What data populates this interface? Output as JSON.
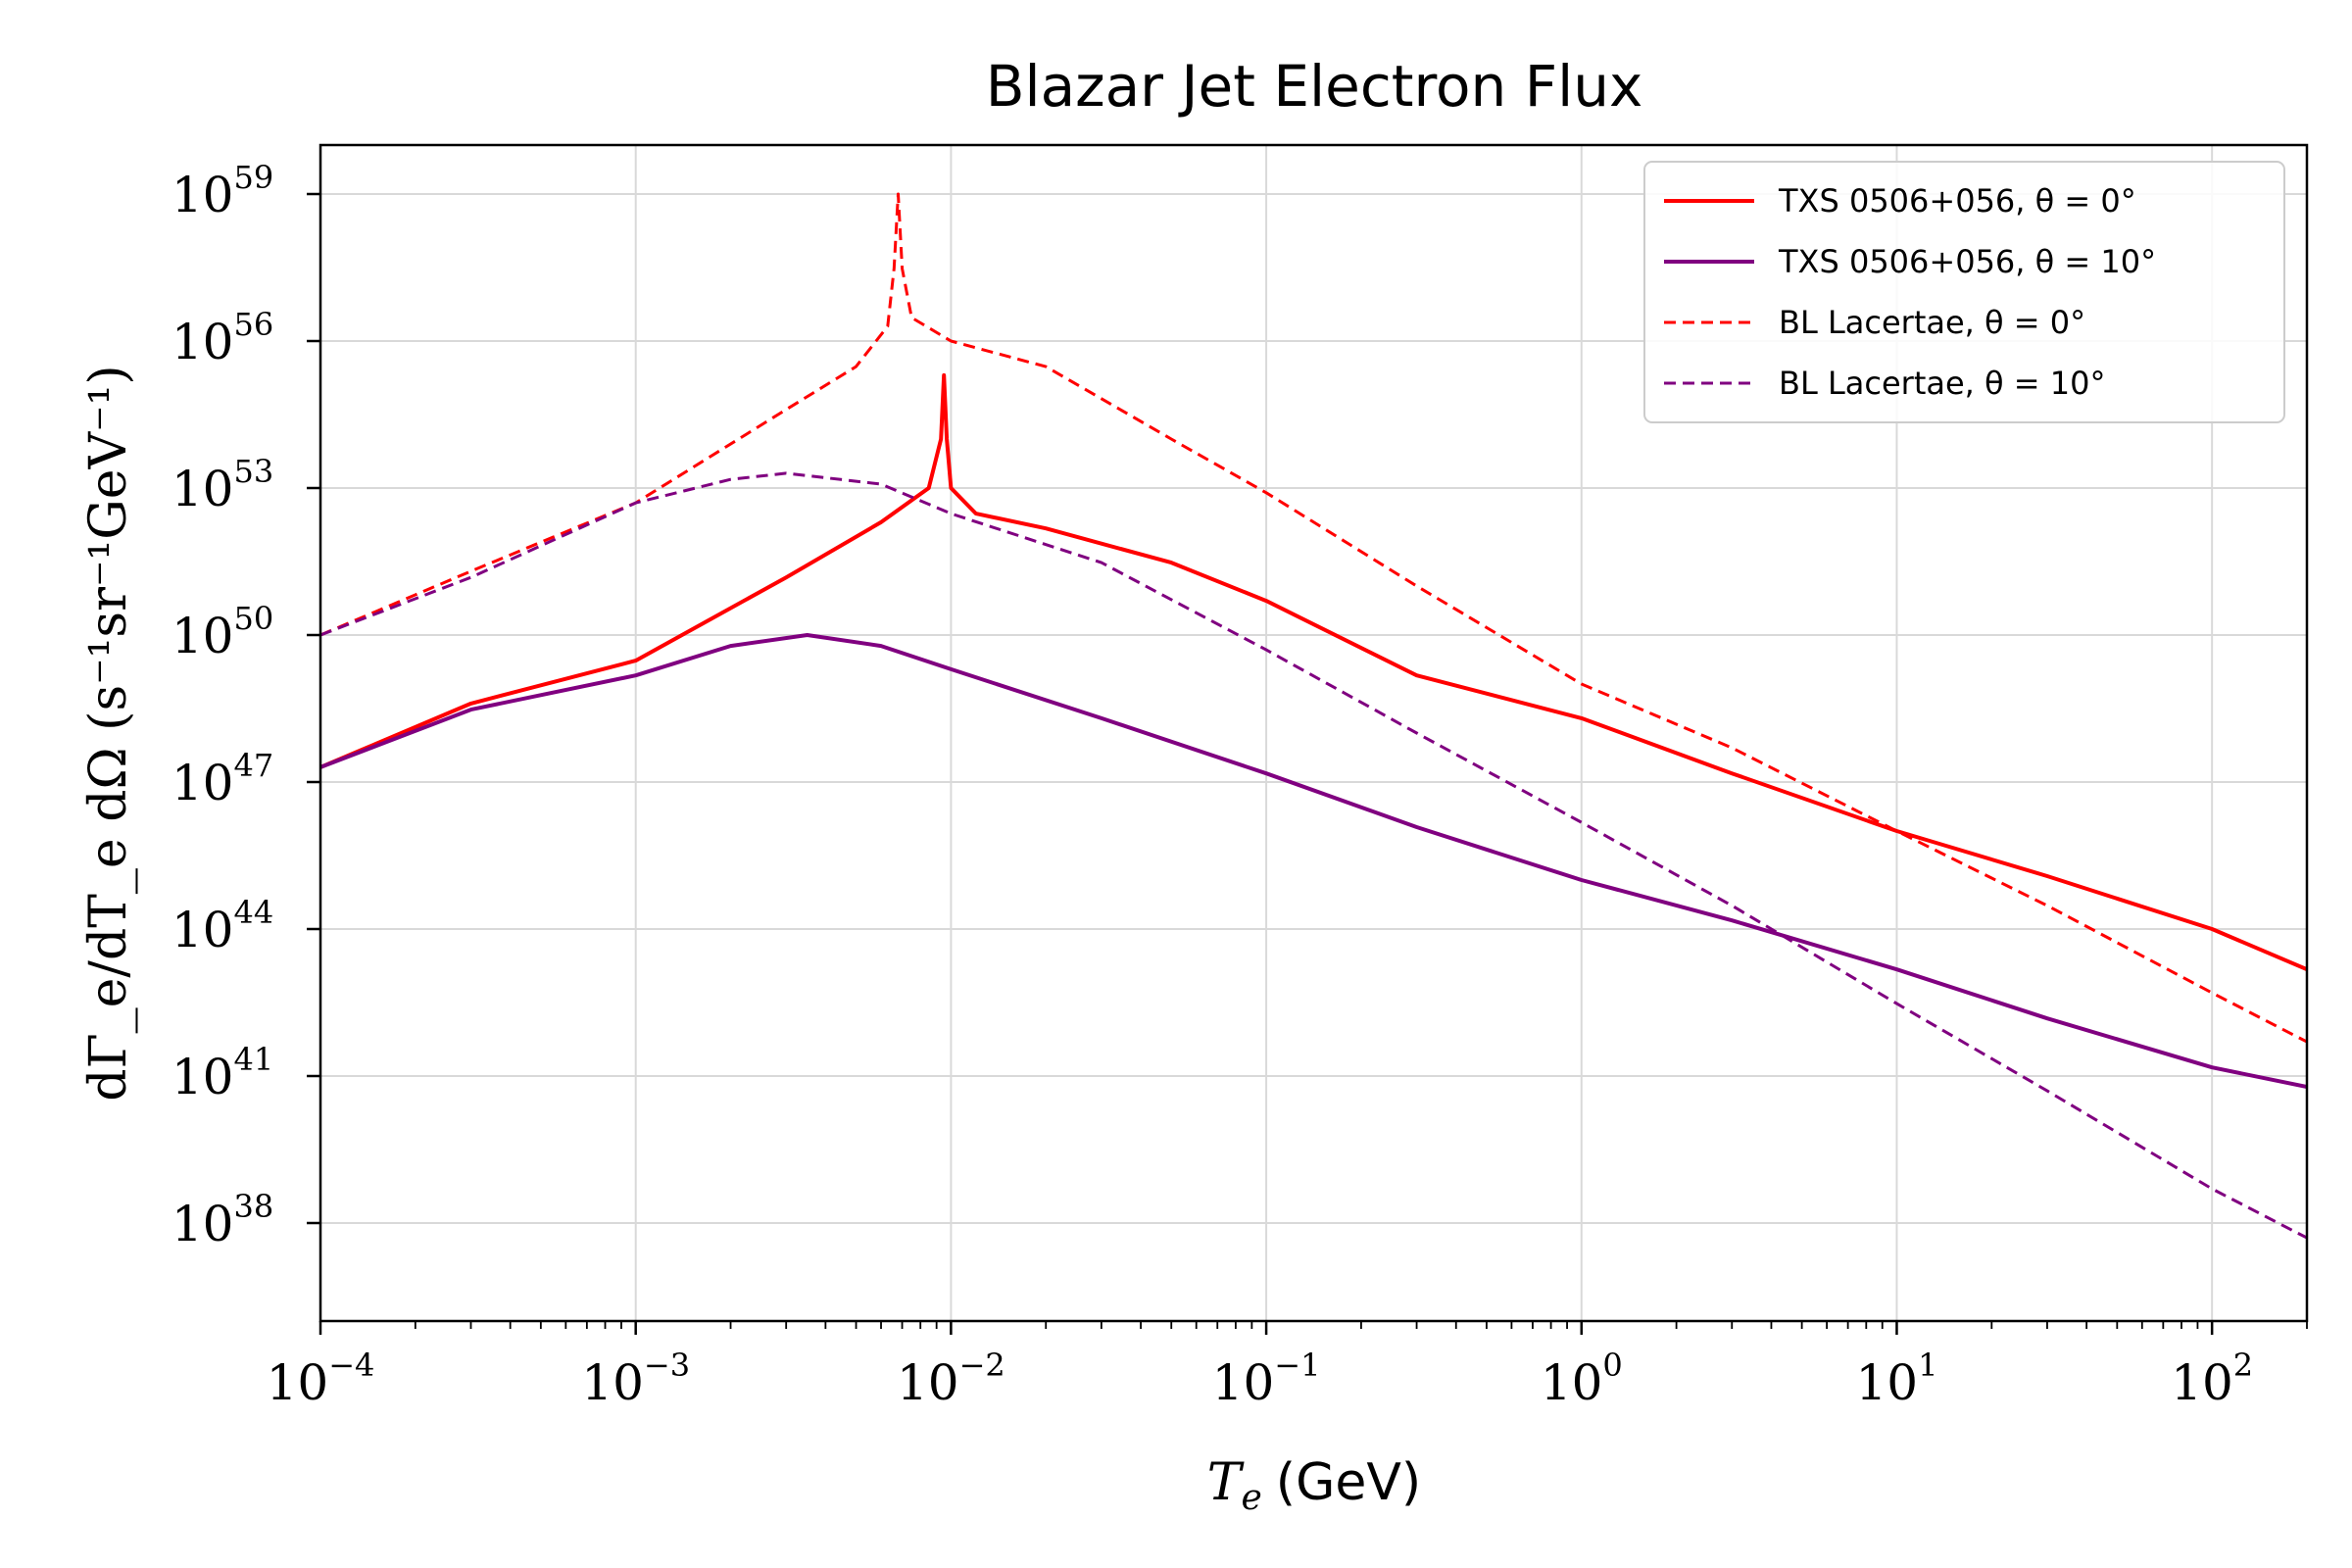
{
  "chart_data": {
    "type": "line",
    "title": "Blazar Jet Electron Flux",
    "xlabel_var": "T",
    "xlabel_sub": "e",
    "xlabel_unit": "(GeV)",
    "ylabel": "dΓ_e/dT_e dΩ (s⁻¹sr⁻¹GeV⁻¹)",
    "xscale": "log",
    "yscale": "log",
    "xlim": [
      0.0001,
      200
    ],
    "ylim": [
      1e+36,
      1e+60
    ],
    "x_tick_exponents": [
      "-4",
      "-3",
      "-2",
      "-1",
      "0",
      "1",
      "2"
    ],
    "y_tick_exponents": [
      "38",
      "41",
      "44",
      "47",
      "50",
      "53",
      "56",
      "59"
    ],
    "tick_base": "10",
    "grid": true,
    "legend_position": "top-right",
    "series": [
      {
        "name": "TXS 0506+056, θ = 0°",
        "color": "#ff0000",
        "dash": "solid",
        "x": [
          0.0001,
          0.0003,
          0.001,
          0.003,
          0.006,
          0.0085,
          0.0093,
          0.0095,
          0.0097,
          0.01,
          0.012,
          0.02,
          0.05,
          0.1,
          0.3,
          1,
          3,
          10,
          30,
          100,
          200
        ],
        "y": [
          2e+47,
          4e+48,
          3e+49,
          1.5e+51,
          2e+52,
          1e+53,
          1e+54,
          2e+55,
          1e+54,
          1e+53,
          3e+52,
          1.5e+52,
          3e+51,
          5e+50,
          1.5e+49,
          2e+48,
          1.5e+47,
          1e+46,
          1.2e+45,
          1e+44,
          1.5e+43
        ]
      },
      {
        "name": "TXS 0506+056, θ = 10°",
        "color": "#800080",
        "dash": "solid",
        "x": [
          0.0001,
          0.0003,
          0.001,
          0.002,
          0.0035,
          0.006,
          0.01,
          0.03,
          0.1,
          0.3,
          1,
          3,
          10,
          30,
          100,
          200
        ],
        "y": [
          2e+47,
          3e+48,
          1.5e+49,
          6e+49,
          1e+50,
          6e+49,
          2e+49,
          2e+48,
          1.5e+47,
          1.2e+46,
          1e+45,
          1.5e+44,
          1.5e+43,
          1.5e+42,
          1.5e+41,
          6e+40
        ]
      },
      {
        "name": "BL Lacertae, θ = 0°",
        "color": "#ff0000",
        "dash": "dashed",
        "x": [
          0.0001,
          0.0003,
          0.001,
          0.003,
          0.005,
          0.0063,
          0.0066,
          0.0068,
          0.007,
          0.0075,
          0.01,
          0.02,
          0.05,
          0.1,
          0.3,
          1,
          3,
          10,
          30,
          100,
          200
        ],
        "y": [
          1e+50,
          2e+51,
          5e+52,
          4e+54,
          3e+55,
          2e+56,
          3e+57,
          1e+59,
          3e+57,
          3e+56,
          1e+56,
          3e+55,
          1e+54,
          8e+52,
          1e+51,
          1e+49,
          5e+47,
          1e+46,
          3e+44,
          5e+42,
          5e+41
        ]
      },
      {
        "name": "BL Lacertae, θ = 10°",
        "color": "#800080",
        "dash": "dashed",
        "x": [
          0.0001,
          0.0003,
          0.001,
          0.002,
          0.003,
          0.006,
          0.01,
          0.03,
          0.1,
          0.3,
          1,
          3,
          10,
          30,
          100,
          200
        ],
        "y": [
          1e+50,
          1.5e+51,
          5e+52,
          1.5e+53,
          2e+53,
          1.2e+53,
          3e+52,
          3e+51,
          5e+49,
          1e+48,
          1.5e+46,
          3e+44,
          3e+42,
          5e+40,
          5e+38,
          5e+37
        ]
      }
    ]
  }
}
